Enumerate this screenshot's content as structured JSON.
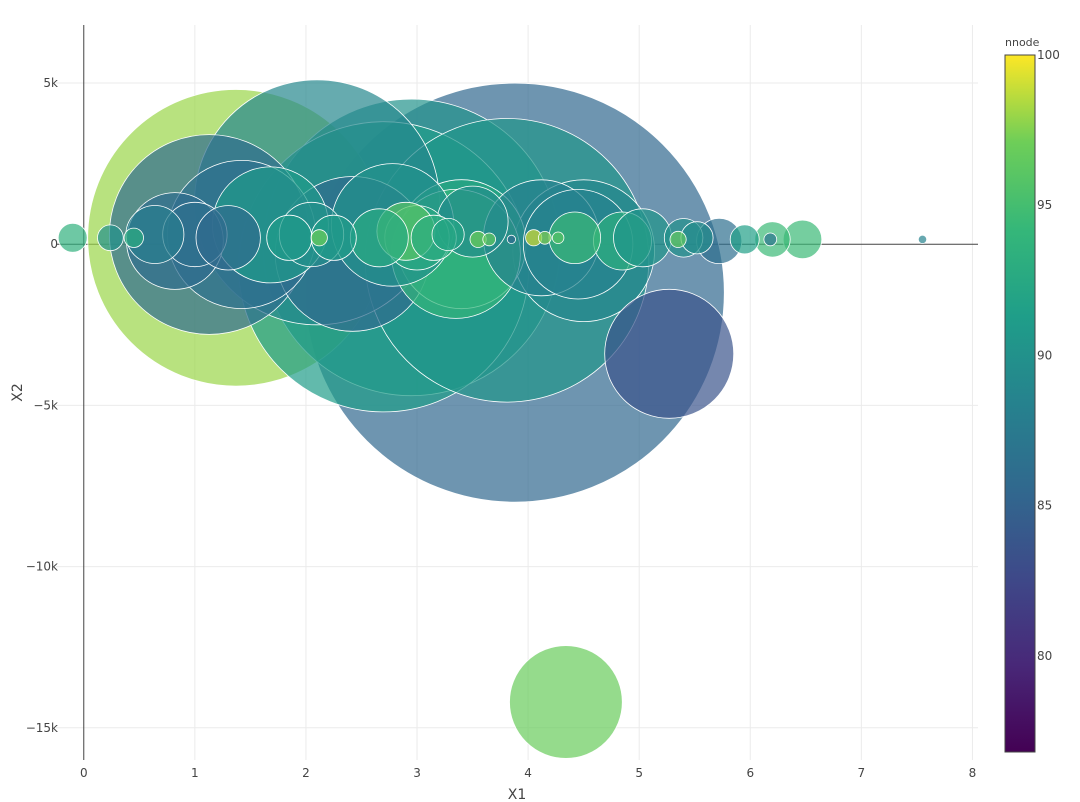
{
  "chart_data": {
    "type": "scatter",
    "subtype": "bubble",
    "title": "",
    "xlabel": "X1",
    "ylabel": "X2",
    "xlim": [
      -0.25,
      8.05
    ],
    "ylim": [
      -16000,
      6800
    ],
    "x_ticks": [
      0,
      1,
      2,
      3,
      4,
      5,
      6,
      7,
      8
    ],
    "x_tick_labels": [
      "0",
      "1",
      "2",
      "3",
      "4",
      "5",
      "6",
      "7",
      "8"
    ],
    "y_ticks": [
      5000,
      0,
      -5000,
      -10000,
      -15000
    ],
    "y_tick_labels": [
      "5k",
      "0",
      "−5k",
      "−10k",
      "−15k"
    ],
    "grid": true,
    "zero_lines": true,
    "size_reference_ylim": true,
    "colorbar": {
      "title": "nnode",
      "range": [
        76.8,
        100
      ],
      "ticks": [
        100,
        95,
        90,
        85,
        80
      ],
      "tick_labels": [
        "100",
        "95",
        "90",
        "85",
        "80"
      ],
      "colorscale": "viridis"
    },
    "points": [
      {
        "x": 3.88,
        "y": -1500,
        "r": 6500,
        "c": 85.5
      },
      {
        "x": 2.7,
        "y": -700,
        "r": 4500,
        "c": 91.2
      },
      {
        "x": 1.37,
        "y": 200,
        "r": 4600,
        "c": 98
      },
      {
        "x": 2.1,
        "y": 1300,
        "r": 3800,
        "c": 89
      },
      {
        "x": 2.95,
        "y": -100,
        "r": 4600,
        "c": 90.2
      },
      {
        "x": 3.81,
        "y": -500,
        "r": 4400,
        "c": 90.5
      },
      {
        "x": 1.13,
        "y": 300,
        "r": 3100,
        "c": 86
      },
      {
        "x": 5.27,
        "y": -3400,
        "r": 2000,
        "c": 83.6
      },
      {
        "x": 4.5,
        "y": -200,
        "r": 2200,
        "c": 89
      },
      {
        "x": 1.42,
        "y": 300,
        "r": 2300,
        "c": 86.5
      },
      {
        "x": 2.42,
        "y": -300,
        "r": 2400,
        "c": 85.8
      },
      {
        "x": 1.68,
        "y": 600,
        "r": 1800,
        "c": 91
      },
      {
        "x": 3.4,
        "y": 0,
        "r": 2000,
        "c": 92.5
      },
      {
        "x": 3.35,
        "y": -300,
        "r": 2000,
        "c": 94
      },
      {
        "x": 2.78,
        "y": 600,
        "r": 1900,
        "c": 90
      },
      {
        "x": 4.12,
        "y": 200,
        "r": 1800,
        "c": 88.3
      },
      {
        "x": 4.45,
        "y": 0,
        "r": 1700,
        "c": 88.5
      },
      {
        "x": 0.82,
        "y": 100,
        "r": 1500,
        "c": 86
      },
      {
        "x": 1.0,
        "y": 300,
        "r": 1000,
        "c": 86.5
      },
      {
        "x": 1.3,
        "y": 200,
        "r": 1000,
        "c": 85.8
      },
      {
        "x": 0.64,
        "y": 300,
        "r": 900,
        "c": 88
      },
      {
        "x": 2.05,
        "y": 300,
        "r": 1000,
        "c": 89.6
      },
      {
        "x": 2.9,
        "y": 400,
        "r": 900,
        "c": 96
      },
      {
        "x": 3.5,
        "y": 700,
        "r": 1100,
        "c": 89.5
      },
      {
        "x": 3.0,
        "y": 200,
        "r": 1000,
        "c": 92.6
      },
      {
        "x": 2.66,
        "y": 200,
        "r": 900,
        "c": 92.8
      },
      {
        "x": 4.85,
        "y": 100,
        "r": 900,
        "c": 93.3
      },
      {
        "x": 5.03,
        "y": 200,
        "r": 900,
        "c": 90.5
      },
      {
        "x": 5.4,
        "y": 200,
        "r": 600,
        "c": 90
      },
      {
        "x": 5.72,
        "y": 100,
        "r": 700,
        "c": 86.3
      },
      {
        "x": 4.42,
        "y": 200,
        "r": 800,
        "c": 94.5
      },
      {
        "x": 1.85,
        "y": 200,
        "r": 700,
        "c": 91
      },
      {
        "x": 2.25,
        "y": 200,
        "r": 700,
        "c": 91.2
      },
      {
        "x": 3.15,
        "y": 200,
        "r": 700,
        "c": 93
      },
      {
        "x": 3.28,
        "y": 300,
        "r": 500,
        "c": 92
      },
      {
        "x": 0.24,
        "y": 200,
        "r": 400,
        "c": 90
      },
      {
        "x": 0.45,
        "y": 200,
        "r": 300,
        "c": 93
      },
      {
        "x": -0.1,
        "y": 200,
        "r": 450,
        "c": 93.5
      },
      {
        "x": 5.52,
        "y": 200,
        "r": 500,
        "c": 89.5
      },
      {
        "x": 5.95,
        "y": 150,
        "r": 450,
        "c": 91.5
      },
      {
        "x": 6.2,
        "y": 150,
        "r": 550,
        "c": 94.5
      },
      {
        "x": 6.47,
        "y": 150,
        "r": 600,
        "c": 94.5
      },
      {
        "x": 7.55,
        "y": 150,
        "r": 130,
        "c": 88.5
      },
      {
        "x": 4.34,
        "y": -14200,
        "r": 1750,
        "c": 96.8
      },
      {
        "x": 4.05,
        "y": 200,
        "r": 250,
        "c": 99.2
      },
      {
        "x": 4.15,
        "y": 200,
        "r": 200,
        "c": 97.5
      },
      {
        "x": 3.85,
        "y": 150,
        "r": 130,
        "c": 85.8
      },
      {
        "x": 3.65,
        "y": 150,
        "r": 200,
        "c": 96.5
      },
      {
        "x": 3.55,
        "y": 150,
        "r": 250,
        "c": 97
      },
      {
        "x": 2.12,
        "y": 200,
        "r": 250,
        "c": 97
      },
      {
        "x": 5.35,
        "y": 150,
        "r": 250,
        "c": 96.5
      },
      {
        "x": 4.27,
        "y": 200,
        "r": 180,
        "c": 96
      },
      {
        "x": 6.18,
        "y": 150,
        "r": 200,
        "c": 87
      }
    ]
  }
}
